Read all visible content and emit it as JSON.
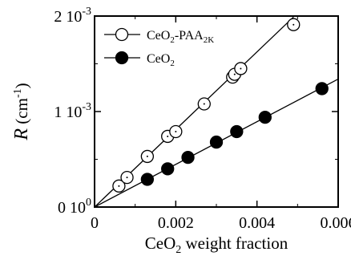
{
  "chart_data": {
    "type": "scatter",
    "xlabel": {
      "main": "CeO",
      "sub": "2",
      "rest": " weight fraction"
    },
    "ylabel": {
      "symbol": "R",
      "unit_pre": " (cm",
      "unit_sup": "-1",
      "unit_post": ")"
    },
    "xlim": [
      0,
      0.006
    ],
    "ylim": [
      0,
      0.002
    ],
    "x_ticks": [
      {
        "value": 0,
        "label": "0"
      },
      {
        "value": 0.002,
        "label": "0.002"
      },
      {
        "value": 0.004,
        "label": "0.004"
      },
      {
        "value": 0.006,
        "label": "0.006"
      }
    ],
    "y_ticks": [
      {
        "value": 0,
        "mant": "0 1",
        "base": "0",
        "exp": "0"
      },
      {
        "value": 0.001,
        "mant": "1 1",
        "base": "0",
        "exp": "-3"
      },
      {
        "value": 0.002,
        "mant": "2 1",
        "base": "0",
        "exp": "-3"
      }
    ],
    "grid": false,
    "legend_position": "top-left",
    "series": [
      {
        "name": {
          "a": "CeO",
          "a_sub": "2",
          "b": "-PAA",
          "b_sub": "2K"
        },
        "marker": "open-circle",
        "fit_line": {
          "x": [
            0,
            0.0049
          ],
          "y": [
            0,
            0.00199
          ]
        },
        "points": [
          {
            "x": 0.0006,
            "y": 0.00022
          },
          {
            "x": 0.0008,
            "y": 0.00031
          },
          {
            "x": 0.0013,
            "y": 0.00053
          },
          {
            "x": 0.0018,
            "y": 0.00074
          },
          {
            "x": 0.002,
            "y": 0.00079
          },
          {
            "x": 0.0027,
            "y": 0.00108
          },
          {
            "x": 0.0034,
            "y": 0.00136
          },
          {
            "x": 0.00345,
            "y": 0.00139
          },
          {
            "x": 0.0036,
            "y": 0.00145
          },
          {
            "x": 0.0049,
            "y": 0.00191
          }
        ]
      },
      {
        "name": {
          "a": "CeO",
          "a_sub": "2",
          "b": "",
          "b_sub": ""
        },
        "marker": "filled-circle",
        "fit_line": {
          "x": [
            0,
            0.006
          ],
          "y": [
            0,
            0.00134
          ]
        },
        "points": [
          {
            "x": 0.0013,
            "y": 0.00029
          },
          {
            "x": 0.0018,
            "y": 0.0004
          },
          {
            "x": 0.0023,
            "y": 0.00052
          },
          {
            "x": 0.003,
            "y": 0.00068
          },
          {
            "x": 0.0035,
            "y": 0.00079
          },
          {
            "x": 0.0042,
            "y": 0.00094
          },
          {
            "x": 0.0056,
            "y": 0.00124
          }
        ]
      }
    ]
  }
}
